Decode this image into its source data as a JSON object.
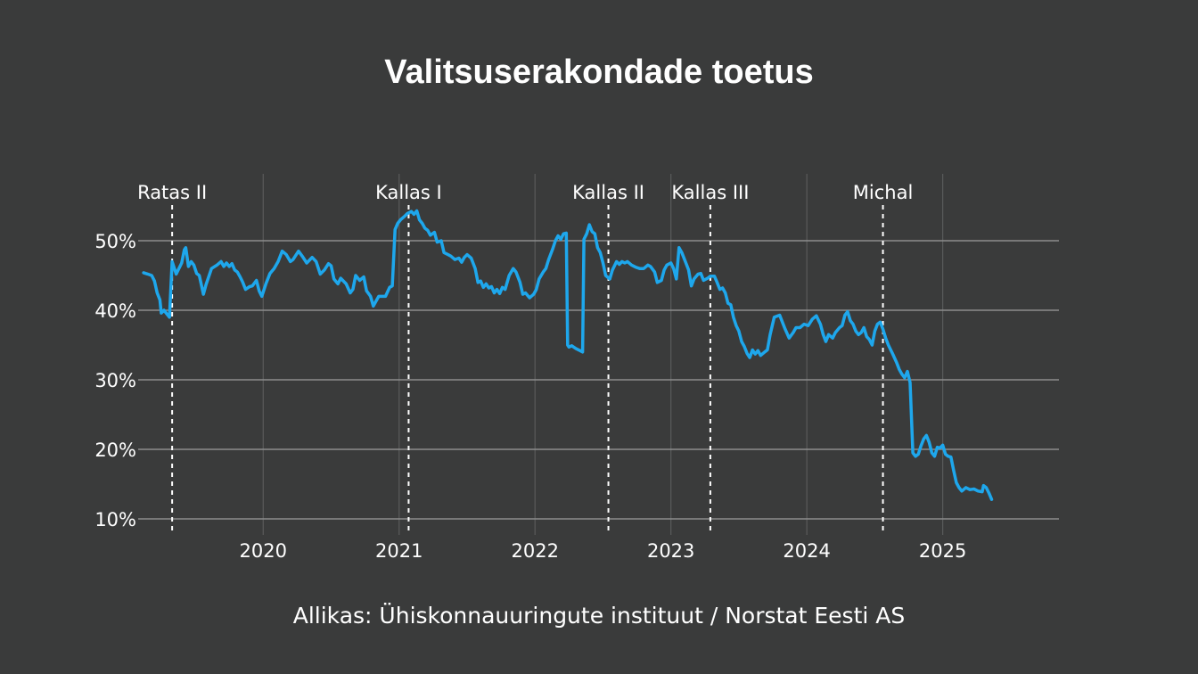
{
  "chart_data": {
    "type": "line",
    "title": "Valitsuserakondade toetus",
    "source": "Allikas: Ühiskonnauuringute instituut / Norstat Eesti AS",
    "xlabel": "",
    "ylabel": "",
    "x_range": [
      2019.1,
      2025.85
    ],
    "ylim": [
      8,
      55
    ],
    "y_ticks": [
      10,
      20,
      30,
      40,
      50
    ],
    "y_tick_labels": [
      "10%",
      "20%",
      "30%",
      "40%",
      "50%"
    ],
    "x_ticks": [
      2020,
      2021,
      2022,
      2023,
      2024,
      2025
    ],
    "x_tick_labels": [
      "2020",
      "2021",
      "2022",
      "2023",
      "2024",
      "2025"
    ],
    "grid": true,
    "line_color": "#1ea7ec",
    "events": [
      {
        "label": "Ratas II",
        "x": 2019.33
      },
      {
        "label": "Kallas I",
        "x": 2021.07
      },
      {
        "label": "Kallas II",
        "x": 2022.54
      },
      {
        "label": "Kallas III",
        "x": 2023.29
      },
      {
        "label": "Michal",
        "x": 2024.56
      }
    ],
    "series": [
      {
        "values": [
          [
            2019.12,
            45.4
          ],
          [
            2019.15,
            45.2
          ],
          [
            2019.18,
            45.0
          ],
          [
            2019.2,
            44.2
          ],
          [
            2019.22,
            42.5
          ],
          [
            2019.24,
            41.5
          ],
          [
            2019.25,
            39.6
          ],
          [
            2019.27,
            40.0
          ],
          [
            2019.29,
            39.5
          ],
          [
            2019.31,
            39.0
          ],
          [
            2019.33,
            47.0
          ],
          [
            2019.36,
            45.2
          ],
          [
            2019.38,
            46.0
          ],
          [
            2019.4,
            46.8
          ],
          [
            2019.42,
            48.7
          ],
          [
            2019.43,
            49.0
          ],
          [
            2019.45,
            46.3
          ],
          [
            2019.47,
            47.0
          ],
          [
            2019.49,
            46.5
          ],
          [
            2019.51,
            45.3
          ],
          [
            2019.53,
            45.0
          ],
          [
            2019.56,
            42.3
          ],
          [
            2019.58,
            43.7
          ],
          [
            2019.62,
            46.0
          ],
          [
            2019.66,
            46.5
          ],
          [
            2019.69,
            47.0
          ],
          [
            2019.71,
            46.3
          ],
          [
            2019.73,
            46.8
          ],
          [
            2019.75,
            46.3
          ],
          [
            2019.77,
            46.7
          ],
          [
            2019.79,
            45.8
          ],
          [
            2019.81,
            45.5
          ],
          [
            2019.83,
            44.8
          ],
          [
            2019.85,
            44.0
          ],
          [
            2019.87,
            43.0
          ],
          [
            2019.9,
            43.4
          ],
          [
            2019.92,
            43.5
          ],
          [
            2019.95,
            44.3
          ],
          [
            2019.97,
            42.8
          ],
          [
            2019.99,
            42.0
          ],
          [
            2020.02,
            43.8
          ],
          [
            2020.05,
            45.3
          ],
          [
            2020.08,
            46.0
          ],
          [
            2020.11,
            47.0
          ],
          [
            2020.14,
            48.5
          ],
          [
            2020.17,
            48.0
          ],
          [
            2020.2,
            47.0
          ],
          [
            2020.22,
            47.3
          ],
          [
            2020.26,
            48.5
          ],
          [
            2020.29,
            47.7
          ],
          [
            2020.32,
            46.8
          ],
          [
            2020.36,
            47.6
          ],
          [
            2020.39,
            47.0
          ],
          [
            2020.42,
            45.2
          ],
          [
            2020.45,
            45.8
          ],
          [
            2020.48,
            46.7
          ],
          [
            2020.5,
            46.4
          ],
          [
            2020.52,
            44.5
          ],
          [
            2020.55,
            43.8
          ],
          [
            2020.57,
            44.6
          ],
          [
            2020.61,
            43.8
          ],
          [
            2020.64,
            42.5
          ],
          [
            2020.66,
            43.0
          ],
          [
            2020.68,
            45.0
          ],
          [
            2020.71,
            44.3
          ],
          [
            2020.74,
            44.8
          ],
          [
            2020.76,
            42.8
          ],
          [
            2020.79,
            42.0
          ],
          [
            2020.81,
            40.6
          ],
          [
            2020.83,
            41.3
          ],
          [
            2020.85,
            42.0
          ],
          [
            2020.87,
            42.0
          ],
          [
            2020.9,
            42.0
          ],
          [
            2020.93,
            43.3
          ],
          [
            2020.95,
            43.5
          ],
          [
            2020.97,
            51.6
          ],
          [
            2020.99,
            52.5
          ],
          [
            2021.01,
            53.0
          ],
          [
            2021.04,
            53.5
          ],
          [
            2021.06,
            53.9
          ],
          [
            2021.09,
            54.2
          ],
          [
            2021.11,
            53.8
          ],
          [
            2021.13,
            54.3
          ],
          [
            2021.15,
            53.0
          ],
          [
            2021.17,
            52.5
          ],
          [
            2021.19,
            51.8
          ],
          [
            2021.21,
            51.5
          ],
          [
            2021.23,
            50.8
          ],
          [
            2021.26,
            51.2
          ],
          [
            2021.28,
            49.8
          ],
          [
            2021.31,
            50.0
          ],
          [
            2021.33,
            48.3
          ],
          [
            2021.36,
            48.0
          ],
          [
            2021.38,
            47.8
          ],
          [
            2021.41,
            47.3
          ],
          [
            2021.44,
            47.5
          ],
          [
            2021.46,
            46.9
          ],
          [
            2021.48,
            47.6
          ],
          [
            2021.5,
            48.0
          ],
          [
            2021.53,
            47.5
          ],
          [
            2021.56,
            46.0
          ],
          [
            2021.58,
            44.0
          ],
          [
            2021.6,
            44.2
          ],
          [
            2021.62,
            43.3
          ],
          [
            2021.64,
            43.8
          ],
          [
            2021.66,
            43.2
          ],
          [
            2021.68,
            43.4
          ],
          [
            2021.7,
            42.5
          ],
          [
            2021.72,
            43.0
          ],
          [
            2021.74,
            42.4
          ],
          [
            2021.76,
            43.3
          ],
          [
            2021.78,
            43.0
          ],
          [
            2021.81,
            45.0
          ],
          [
            2021.84,
            46.0
          ],
          [
            2021.86,
            45.5
          ],
          [
            2021.89,
            44.0
          ],
          [
            2021.91,
            42.3
          ],
          [
            2021.93,
            42.5
          ],
          [
            2021.96,
            41.8
          ],
          [
            2021.99,
            42.3
          ],
          [
            2022.01,
            43.0
          ],
          [
            2022.03,
            44.5
          ],
          [
            2022.06,
            45.5
          ],
          [
            2022.08,
            46.0
          ],
          [
            2022.1,
            47.3
          ],
          [
            2022.13,
            48.8
          ],
          [
            2022.15,
            50.0
          ],
          [
            2022.17,
            50.7
          ],
          [
            2022.19,
            50.2
          ],
          [
            2022.21,
            51.0
          ],
          [
            2022.23,
            51.1
          ],
          [
            2022.24,
            35.0
          ],
          [
            2022.25,
            34.7
          ],
          [
            2022.27,
            34.9
          ],
          [
            2022.3,
            34.5
          ],
          [
            2022.33,
            34.2
          ],
          [
            2022.35,
            34.0
          ],
          [
            2022.36,
            50.2
          ],
          [
            2022.38,
            51.0
          ],
          [
            2022.4,
            52.3
          ],
          [
            2022.42,
            51.3
          ],
          [
            2022.44,
            51.0
          ],
          [
            2022.46,
            49.0
          ],
          [
            2022.48,
            48.3
          ],
          [
            2022.5,
            46.8
          ],
          [
            2022.52,
            45.0
          ],
          [
            2022.55,
            44.5
          ],
          [
            2022.57,
            45.8
          ],
          [
            2022.6,
            47.0
          ],
          [
            2022.62,
            46.6
          ],
          [
            2022.64,
            47.0
          ],
          [
            2022.66,
            46.8
          ],
          [
            2022.68,
            47.0
          ],
          [
            2022.71,
            46.5
          ],
          [
            2022.74,
            46.2
          ],
          [
            2022.77,
            46.0
          ],
          [
            2022.8,
            46.0
          ],
          [
            2022.83,
            46.5
          ],
          [
            2022.85,
            46.3
          ],
          [
            2022.88,
            45.5
          ],
          [
            2022.9,
            44.0
          ],
          [
            2022.93,
            44.3
          ],
          [
            2022.95,
            45.8
          ],
          [
            2022.97,
            46.5
          ],
          [
            2023.0,
            46.8
          ],
          [
            2023.02,
            46.0
          ],
          [
            2023.04,
            44.5
          ],
          [
            2023.06,
            49.0
          ],
          [
            2023.08,
            48.3
          ],
          [
            2023.11,
            46.8
          ],
          [
            2023.13,
            45.8
          ],
          [
            2023.15,
            43.5
          ],
          [
            2023.17,
            44.5
          ],
          [
            2023.2,
            45.2
          ],
          [
            2023.22,
            45.3
          ],
          [
            2023.24,
            44.3
          ],
          [
            2023.27,
            44.6
          ],
          [
            2023.29,
            44.9
          ],
          [
            2023.32,
            44.9
          ],
          [
            2023.34,
            44.0
          ],
          [
            2023.36,
            43.0
          ],
          [
            2023.38,
            43.2
          ],
          [
            2023.4,
            42.5
          ],
          [
            2023.42,
            41.0
          ],
          [
            2023.44,
            40.8
          ],
          [
            2023.46,
            39.0
          ],
          [
            2023.48,
            37.8
          ],
          [
            2023.5,
            37.0
          ],
          [
            2023.52,
            35.5
          ],
          [
            2023.54,
            34.8
          ],
          [
            2023.56,
            33.8
          ],
          [
            2023.58,
            33.2
          ],
          [
            2023.6,
            34.3
          ],
          [
            2023.62,
            33.7
          ],
          [
            2023.64,
            34.2
          ],
          [
            2023.66,
            33.5
          ],
          [
            2023.69,
            34.0
          ],
          [
            2023.71,
            34.3
          ],
          [
            2023.73,
            36.5
          ],
          [
            2023.76,
            39.0
          ],
          [
            2023.8,
            39.3
          ],
          [
            2023.82,
            38.3
          ],
          [
            2023.84,
            37.3
          ],
          [
            2023.87,
            36.0
          ],
          [
            2023.9,
            36.8
          ],
          [
            2023.92,
            37.5
          ],
          [
            2023.95,
            37.5
          ],
          [
            2023.98,
            38.0
          ],
          [
            2024.01,
            37.8
          ],
          [
            2024.04,
            38.7
          ],
          [
            2024.07,
            39.2
          ],
          [
            2024.1,
            38.0
          ],
          [
            2024.12,
            36.5
          ],
          [
            2024.14,
            35.5
          ],
          [
            2024.16,
            36.5
          ],
          [
            2024.19,
            36.0
          ],
          [
            2024.21,
            36.8
          ],
          [
            2024.24,
            37.5
          ],
          [
            2024.26,
            37.8
          ],
          [
            2024.28,
            39.3
          ],
          [
            2024.3,
            39.8
          ],
          [
            2024.32,
            38.5
          ],
          [
            2024.34,
            38.0
          ],
          [
            2024.36,
            37.0
          ],
          [
            2024.38,
            36.5
          ],
          [
            2024.4,
            36.8
          ],
          [
            2024.42,
            37.5
          ],
          [
            2024.44,
            36.2
          ],
          [
            2024.46,
            35.8
          ],
          [
            2024.48,
            35.0
          ],
          [
            2024.5,
            37.0
          ],
          [
            2024.52,
            38.0
          ],
          [
            2024.54,
            38.3
          ],
          [
            2024.56,
            37.3
          ],
          [
            2024.58,
            36.0
          ],
          [
            2024.6,
            35.0
          ],
          [
            2024.63,
            33.8
          ],
          [
            2024.66,
            32.5
          ],
          [
            2024.68,
            31.5
          ],
          [
            2024.7,
            30.8
          ],
          [
            2024.72,
            30.3
          ],
          [
            2024.74,
            31.2
          ],
          [
            2024.76,
            29.6
          ],
          [
            2024.78,
            19.5
          ],
          [
            2024.8,
            19.0
          ],
          [
            2024.82,
            19.3
          ],
          [
            2024.84,
            20.5
          ],
          [
            2024.86,
            21.5
          ],
          [
            2024.88,
            22.0
          ],
          [
            2024.9,
            21.0
          ],
          [
            2024.92,
            19.5
          ],
          [
            2024.94,
            19.0
          ],
          [
            2024.96,
            20.3
          ],
          [
            2024.98,
            20.2
          ],
          [
            2025.0,
            20.6
          ],
          [
            2025.02,
            19.3
          ],
          [
            2025.04,
            19.0
          ],
          [
            2025.06,
            18.9
          ],
          [
            2025.08,
            17.0
          ],
          [
            2025.1,
            15.2
          ],
          [
            2025.12,
            14.5
          ],
          [
            2025.14,
            14.0
          ],
          [
            2025.17,
            14.5
          ],
          [
            2025.2,
            14.2
          ],
          [
            2025.23,
            14.3
          ],
          [
            2025.26,
            14.0
          ],
          [
            2025.29,
            13.9
          ],
          [
            2025.3,
            14.8
          ],
          [
            2025.32,
            14.5
          ],
          [
            2025.34,
            13.7
          ],
          [
            2025.36,
            12.8
          ]
        ]
      }
    ]
  }
}
